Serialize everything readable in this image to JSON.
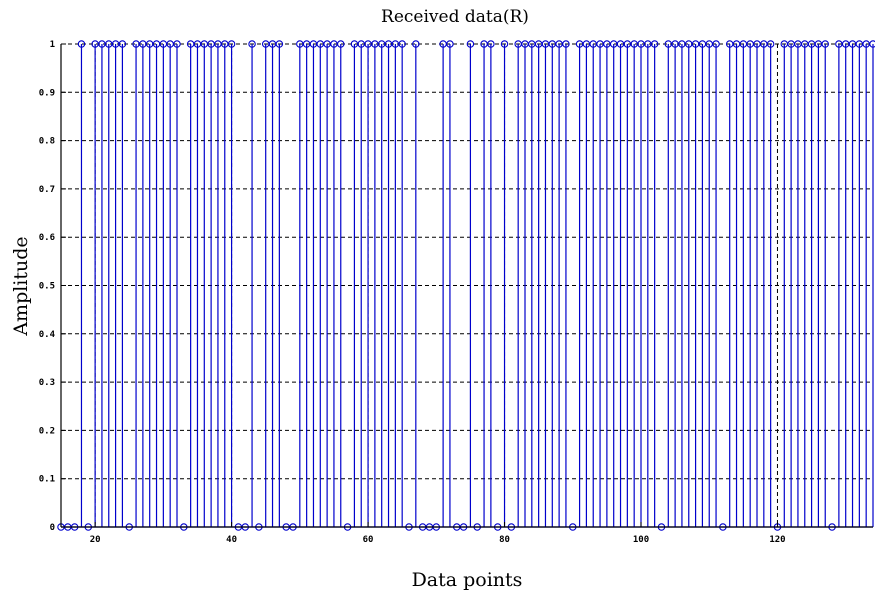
{
  "chart_data": {
    "type": "stem",
    "title": "Received data(R)",
    "xlabel": "Data points",
    "ylabel": "Amplitude",
    "xlim": [
      15,
      134
    ],
    "ylim": [
      0,
      1
    ],
    "grid": true,
    "color": "#0000cc",
    "x_ticks": [
      20,
      40,
      60,
      80,
      100,
      120
    ],
    "y_ticks": [
      0,
      0.1,
      0.2,
      0.3,
      0.4,
      0.5,
      0.6,
      0.7,
      0.8,
      0.9,
      1
    ],
    "x_tick_labels": [
      "20",
      "40",
      "60",
      "80",
      "100",
      "120"
    ],
    "y_tick_labels": [
      "0",
      "0.1",
      "0.2",
      "0.3",
      "0.4",
      "0.5",
      "0.6",
      "0.7",
      "0.8",
      "0.9",
      "1"
    ],
    "x": [
      15,
      16,
      17,
      18,
      19,
      20,
      21,
      22,
      23,
      24,
      25,
      26,
      27,
      28,
      29,
      30,
      31,
      32,
      33,
      34,
      35,
      36,
      37,
      38,
      39,
      40,
      41,
      42,
      43,
      44,
      45,
      46,
      47,
      48,
      49,
      50,
      51,
      52,
      53,
      54,
      55,
      56,
      57,
      58,
      59,
      60,
      61,
      62,
      63,
      64,
      65,
      66,
      67,
      68,
      69,
      70,
      71,
      72,
      73,
      74,
      75,
      76,
      77,
      78,
      79,
      80,
      81,
      82,
      83,
      84,
      85,
      86,
      87,
      88,
      89,
      90,
      91,
      92,
      93,
      94,
      95,
      96,
      97,
      98,
      99,
      100,
      101,
      102,
      103,
      104,
      105,
      106,
      107,
      108,
      109,
      110,
      111,
      112,
      113,
      114,
      115,
      116,
      117,
      118,
      119,
      120,
      121,
      122,
      123,
      124,
      125,
      126,
      127,
      128,
      129,
      130,
      131,
      132,
      133,
      134
    ],
    "values": [
      0,
      0,
      0,
      1,
      0,
      1,
      1,
      1,
      1,
      1,
      0,
      1,
      1,
      1,
      1,
      1,
      1,
      1,
      0,
      1,
      1,
      1,
      1,
      1,
      1,
      1,
      0,
      0,
      1,
      0,
      1,
      1,
      1,
      0,
      0,
      1,
      1,
      1,
      1,
      1,
      1,
      1,
      0,
      1,
      1,
      1,
      1,
      1,
      1,
      1,
      1,
      0,
      1,
      0,
      0,
      0,
      1,
      1,
      0,
      0,
      1,
      0,
      1,
      1,
      0,
      1,
      0,
      1,
      1,
      1,
      1,
      1,
      1,
      1,
      1,
      0,
      1,
      1,
      1,
      1,
      1,
      1,
      1,
      1,
      1,
      1,
      1,
      1,
      0,
      1,
      1,
      1,
      1,
      1,
      1,
      1,
      1,
      0,
      1,
      1,
      1,
      1,
      1,
      1,
      1,
      0,
      1,
      1,
      1,
      1,
      1,
      1,
      1,
      0,
      1,
      1,
      1,
      1,
      1,
      1
    ]
  }
}
